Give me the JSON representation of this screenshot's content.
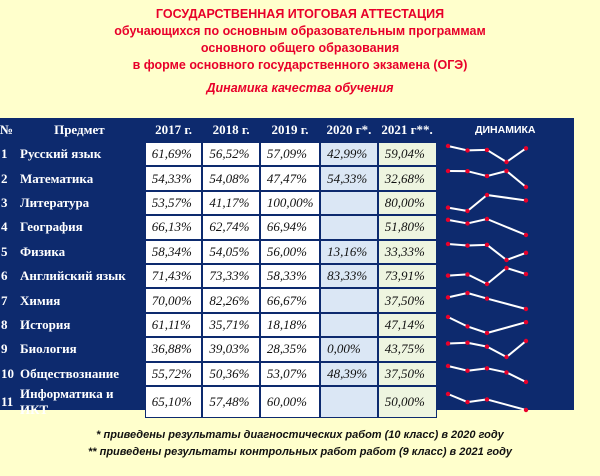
{
  "header": {
    "line1": "ГОСУДАРСТВЕННАЯ ИТОГОВАЯ АТТЕСТАЦИЯ",
    "line2": "обучающихся по основным образовательным программам",
    "line3": "основного общего образования",
    "line4": "в форме основного государственного экзамена (ОГЭ)",
    "subtitle": "Динамика качества обучения"
  },
  "table": {
    "columns": [
      "№",
      "Предмет",
      "2017 г.",
      "2018 г.",
      "2019 г.",
      "2020 г*.",
      "2021 г**.",
      "ДИНАМИКА"
    ],
    "rows": [
      {
        "num": "1",
        "subject": "Русский язык",
        "values": [
          "61,69%",
          "56,52%",
          "57,09%",
          "42,99%",
          "59,04%"
        ]
      },
      {
        "num": "2",
        "subject": "Математика",
        "values": [
          "54,33%",
          "54,08%",
          "47,47%",
          "54,33%",
          "32,68%"
        ]
      },
      {
        "num": "3",
        "subject": "Литература",
        "values": [
          "53,57%",
          "41,17%",
          "100,00%",
          "",
          "80,00%"
        ]
      },
      {
        "num": "4",
        "subject": "География",
        "values": [
          "66,13%",
          "62,74%",
          "66,94%",
          "",
          "51,80%"
        ]
      },
      {
        "num": "5",
        "subject": "Физика",
        "values": [
          "58,34%",
          "54,05%",
          "56,00%",
          "13,16%",
          "33,33%"
        ]
      },
      {
        "num": "6",
        "subject": "Английский язык",
        "values": [
          "71,43%",
          "73,33%",
          "58,33%",
          "83,33%",
          "73,91%"
        ]
      },
      {
        "num": "7",
        "subject": "Химия",
        "values": [
          "70,00%",
          "82,26%",
          "66,67%",
          "",
          "37,50%"
        ]
      },
      {
        "num": "8",
        "subject": "История",
        "values": [
          "61,11%",
          "35,71%",
          "18,18%",
          "",
          "47,14%"
        ]
      },
      {
        "num": "9",
        "subject": "Биология",
        "values": [
          "36,88%",
          "39,03%",
          "28,35%",
          "0,00%",
          "43,75%"
        ]
      },
      {
        "num": "10",
        "subject": "Обществознание",
        "values": [
          "55,72%",
          "50,36%",
          "53,07%",
          "48,39%",
          "37,50%"
        ]
      },
      {
        "num": "11",
        "subject": "Информатика и ИКТ",
        "values": [
          "65,10%",
          "57,48%",
          "60,00%",
          "",
          "50,00%"
        ]
      }
    ]
  },
  "colors": {
    "table_bg": "#0d2a6e",
    "header_text": "#e8002a",
    "page_bg": "#ffffcc",
    "spark_line": "#ffffff",
    "spark_point": "#e8002a"
  },
  "footer": {
    "note1": "* приведены результаты диагностических работ (10 класс) в 2020 году",
    "note2": "** приведены результаты контрольных работ работ (9 класс) в 2021 году"
  }
}
